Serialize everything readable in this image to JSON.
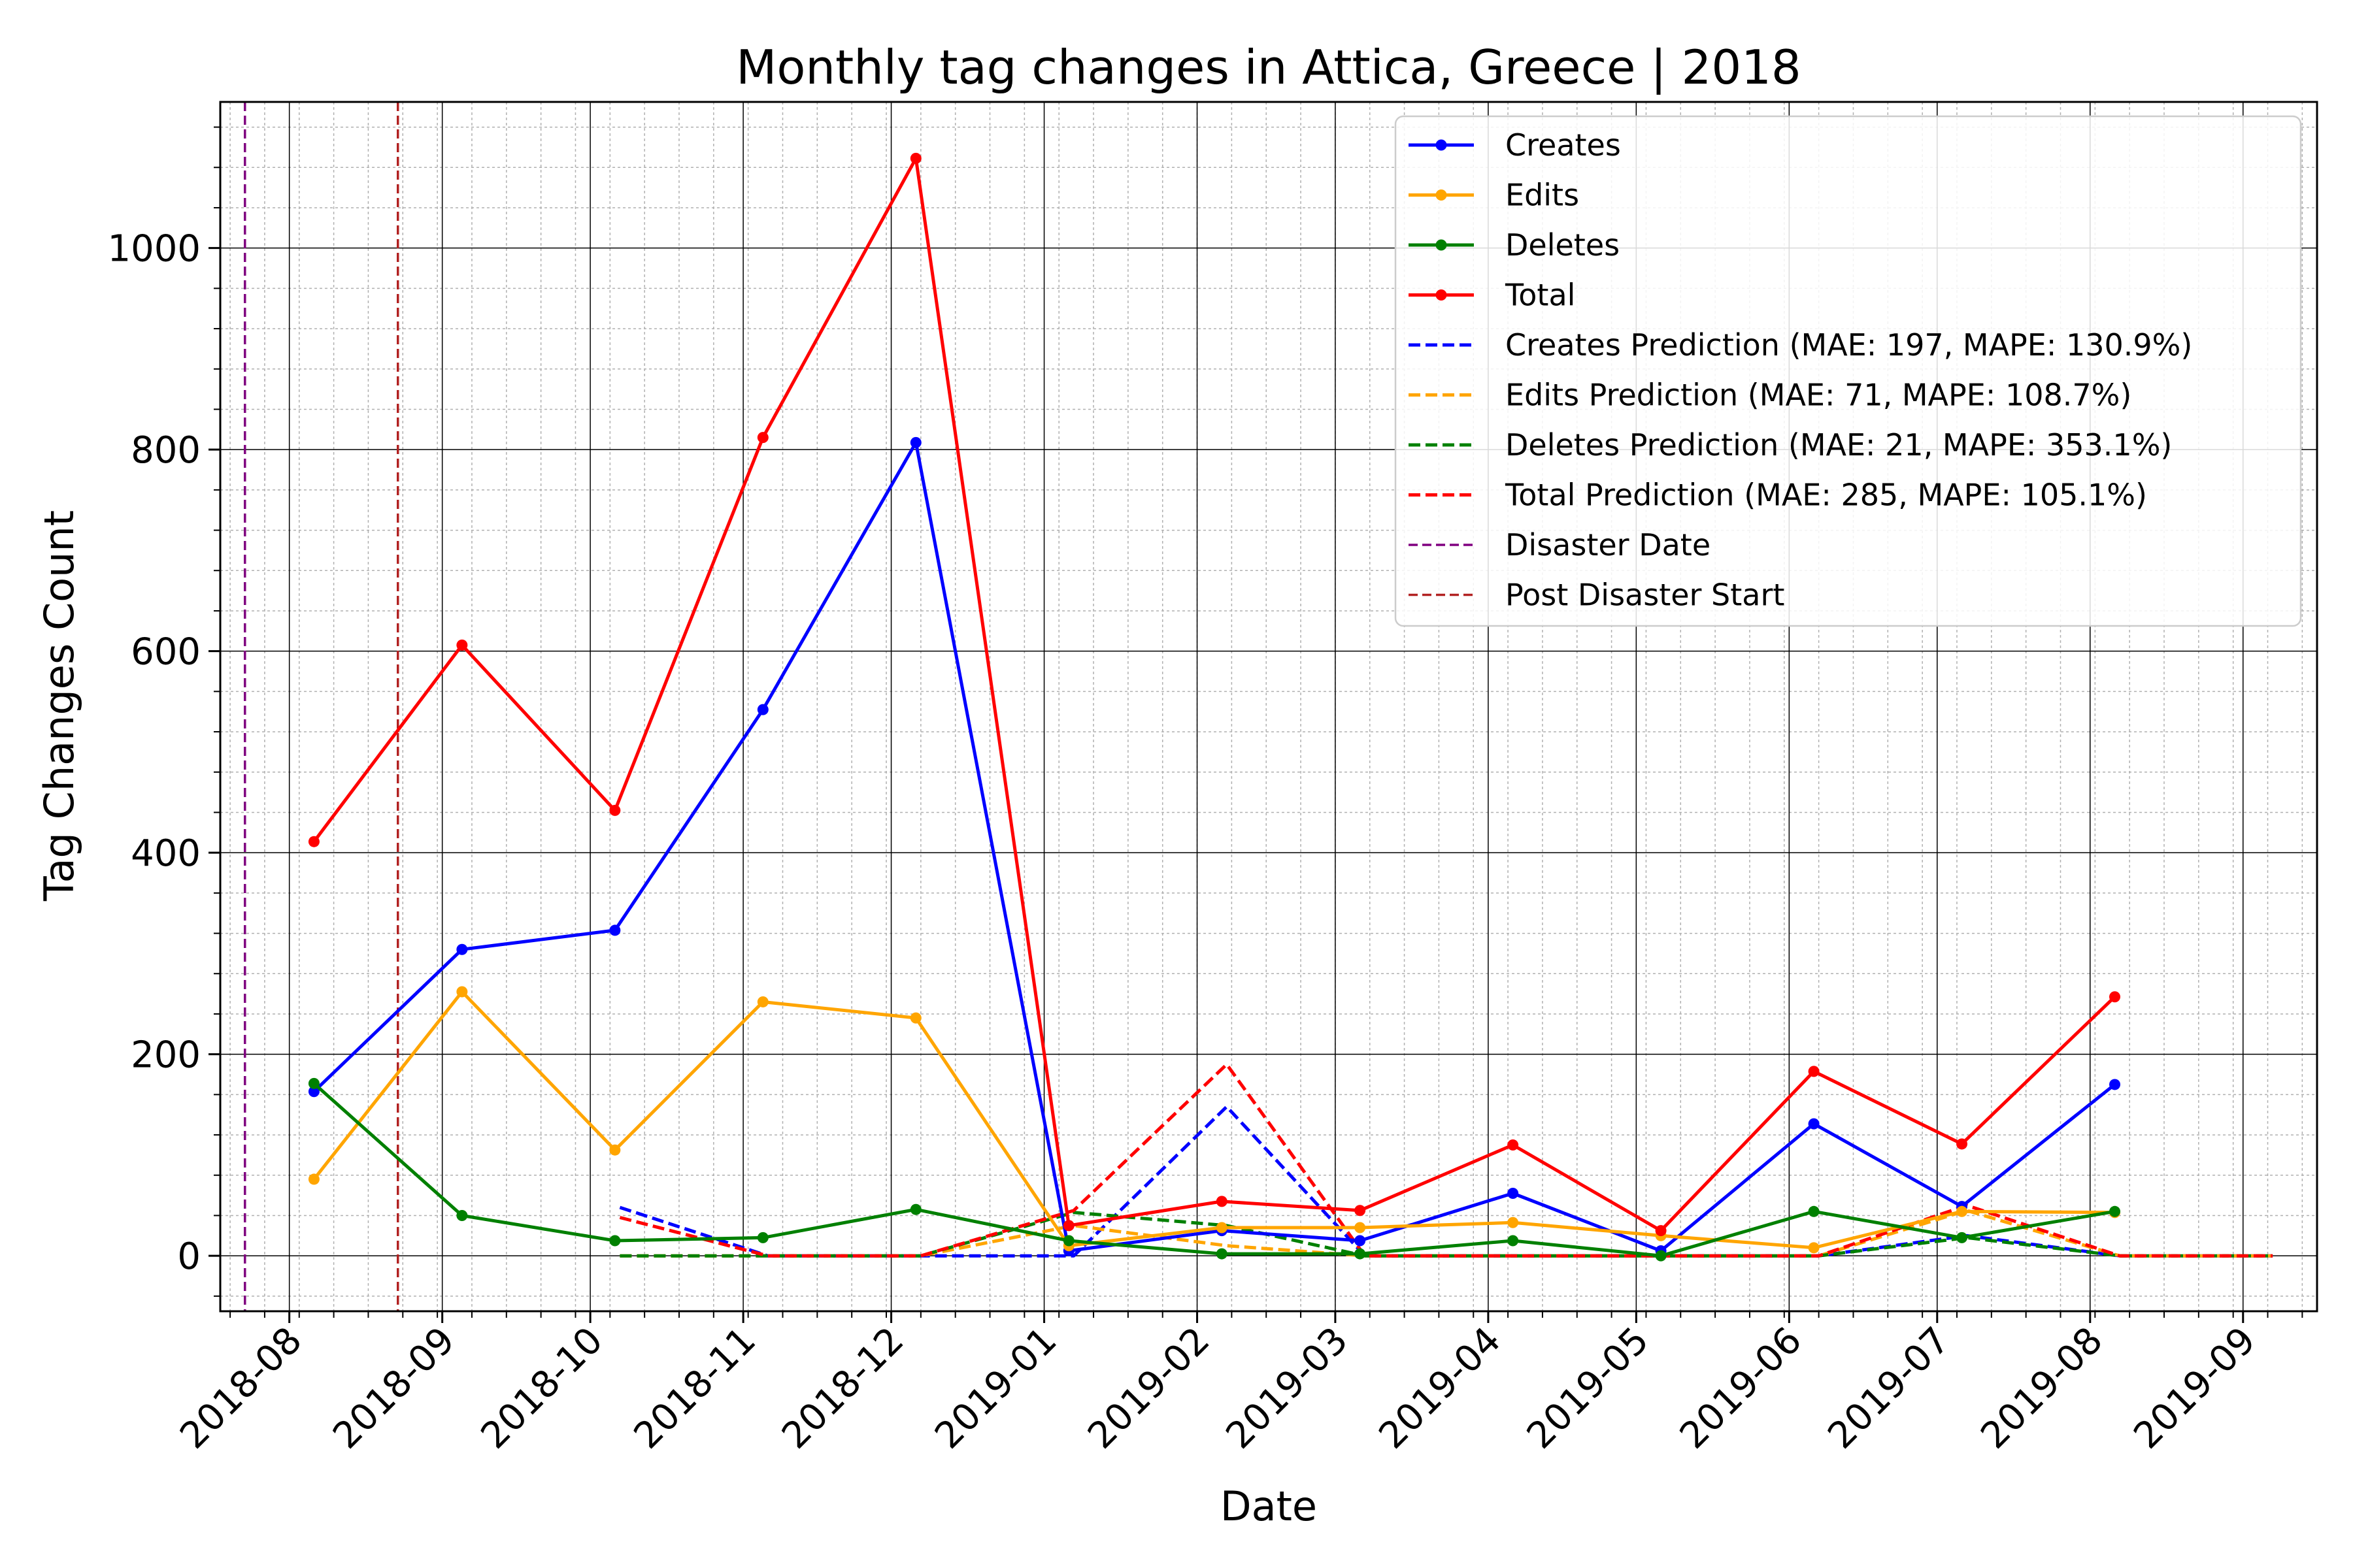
{
  "chart_data": {
    "type": "line",
    "title": "Monthly tag changes in Attica, Greece | 2018",
    "xlabel": "Date",
    "ylabel": "Tag Changes Count",
    "x_tick_labels": [
      "2018-08",
      "2018-09",
      "2018-10",
      "2018-11",
      "2018-12",
      "2019-01",
      "2019-02",
      "2019-03",
      "2019-04",
      "2019-05",
      "2019-06",
      "2019-07",
      "2019-08",
      "2019-09"
    ],
    "xlim": [
      "2018-07-18",
      "2019-09-16"
    ],
    "y_ticks": [
      0,
      200,
      400,
      600,
      800,
      1000
    ],
    "ylim": [
      -55,
      1145
    ],
    "grid": "major and minor",
    "legend_position": "top-right",
    "series": [
      {
        "name": "Creates",
        "color": "#0000ff",
        "style": "solid",
        "markers": true,
        "points": [
          [
            "2018-08-06",
            163
          ],
          [
            "2018-09-05",
            304
          ],
          [
            "2018-10-06",
            323
          ],
          [
            "2018-11-05",
            542
          ],
          [
            "2018-12-06",
            807
          ],
          [
            "2019-01-06",
            5
          ],
          [
            "2019-02-06",
            25
          ],
          [
            "2019-03-06",
            15
          ],
          [
            "2019-04-06",
            62
          ],
          [
            "2019-05-06",
            5
          ],
          [
            "2019-06-06",
            131
          ],
          [
            "2019-07-06",
            49
          ],
          [
            "2019-08-06",
            170
          ]
        ]
      },
      {
        "name": "Edits",
        "color": "#ffa500",
        "style": "solid",
        "markers": true,
        "points": [
          [
            "2018-08-06",
            76
          ],
          [
            "2018-09-05",
            262
          ],
          [
            "2018-10-06",
            105
          ],
          [
            "2018-11-05",
            252
          ],
          [
            "2018-12-06",
            236
          ],
          [
            "2019-01-06",
            10
          ],
          [
            "2019-02-06",
            28
          ],
          [
            "2019-03-06",
            28
          ],
          [
            "2019-04-06",
            33
          ],
          [
            "2019-05-06",
            20
          ],
          [
            "2019-06-06",
            8
          ],
          [
            "2019-07-06",
            44
          ],
          [
            "2019-08-06",
            43
          ]
        ]
      },
      {
        "name": "Deletes",
        "color": "#008000",
        "style": "solid",
        "markers": true,
        "points": [
          [
            "2018-08-06",
            171
          ],
          [
            "2018-09-05",
            40
          ],
          [
            "2018-10-06",
            15
          ],
          [
            "2018-11-05",
            18
          ],
          [
            "2018-12-06",
            46
          ],
          [
            "2019-01-06",
            15
          ],
          [
            "2019-02-06",
            2
          ],
          [
            "2019-03-06",
            2
          ],
          [
            "2019-04-06",
            15
          ],
          [
            "2019-05-06",
            0
          ],
          [
            "2019-06-06",
            44
          ],
          [
            "2019-07-06",
            18
          ],
          [
            "2019-08-06",
            44
          ]
        ]
      },
      {
        "name": "Total",
        "color": "#ff0000",
        "style": "solid",
        "markers": true,
        "points": [
          [
            "2018-08-06",
            411
          ],
          [
            "2018-09-05",
            606
          ],
          [
            "2018-10-06",
            442
          ],
          [
            "2018-11-05",
            812
          ],
          [
            "2018-12-06",
            1089
          ],
          [
            "2019-01-06",
            30
          ],
          [
            "2019-02-06",
            54
          ],
          [
            "2019-03-06",
            45
          ],
          [
            "2019-04-06",
            110
          ],
          [
            "2019-05-06",
            25
          ],
          [
            "2019-06-06",
            183
          ],
          [
            "2019-07-06",
            111
          ],
          [
            "2019-08-06",
            257
          ]
        ]
      },
      {
        "name": "Creates Prediction (MAE: 197, MAPE: 130.9%)",
        "color": "#0000ff",
        "style": "dashed",
        "markers": false,
        "points": [
          [
            "2018-10-07",
            48
          ],
          [
            "2018-11-06",
            0
          ],
          [
            "2018-12-07",
            0
          ],
          [
            "2019-01-07",
            0
          ],
          [
            "2019-02-07",
            148
          ],
          [
            "2019-03-07",
            0
          ],
          [
            "2019-04-07",
            0
          ],
          [
            "2019-05-07",
            0
          ],
          [
            "2019-06-07",
            0
          ],
          [
            "2019-07-07",
            20
          ],
          [
            "2019-08-07",
            0
          ],
          [
            "2019-09-07",
            0
          ]
        ]
      },
      {
        "name": "Edits Prediction (MAE: 71, MAPE: 108.7%)",
        "color": "#ffa500",
        "style": "dashed",
        "markers": false,
        "points": [
          [
            "2018-10-07",
            0
          ],
          [
            "2018-11-06",
            0
          ],
          [
            "2018-12-07",
            0
          ],
          [
            "2019-01-07",
            30
          ],
          [
            "2019-02-07",
            10
          ],
          [
            "2019-03-07",
            0
          ],
          [
            "2019-04-07",
            0
          ],
          [
            "2019-05-07",
            0
          ],
          [
            "2019-06-07",
            0
          ],
          [
            "2019-07-07",
            45
          ],
          [
            "2019-08-07",
            0
          ],
          [
            "2019-09-07",
            0
          ]
        ]
      },
      {
        "name": "Deletes Prediction (MAE: 21, MAPE: 353.1%)",
        "color": "#008000",
        "style": "dashed",
        "markers": false,
        "points": [
          [
            "2018-10-07",
            0
          ],
          [
            "2018-11-06",
            0
          ],
          [
            "2018-12-07",
            0
          ],
          [
            "2019-01-07",
            43
          ],
          [
            "2019-02-07",
            30
          ],
          [
            "2019-03-07",
            0
          ],
          [
            "2019-04-07",
            0
          ],
          [
            "2019-05-07",
            0
          ],
          [
            "2019-06-07",
            0
          ],
          [
            "2019-07-07",
            18
          ],
          [
            "2019-08-07",
            0
          ],
          [
            "2019-09-07",
            0
          ]
        ]
      },
      {
        "name": "Total Prediction (MAE: 285, MAPE: 105.1%)",
        "color": "#ff0000",
        "style": "dashed",
        "markers": false,
        "points": [
          [
            "2018-10-07",
            38
          ],
          [
            "2018-11-06",
            0
          ],
          [
            "2018-12-07",
            0
          ],
          [
            "2019-01-07",
            45
          ],
          [
            "2019-02-07",
            190
          ],
          [
            "2019-03-07",
            0
          ],
          [
            "2019-04-07",
            0
          ],
          [
            "2019-05-07",
            0
          ],
          [
            "2019-06-07",
            0
          ],
          [
            "2019-07-07",
            50
          ],
          [
            "2019-08-07",
            0
          ],
          [
            "2019-09-07",
            0
          ]
        ]
      }
    ],
    "vlines": [
      {
        "name": "Disaster Date",
        "date": "2018-07-23",
        "color": "#800080",
        "style": "dashed"
      },
      {
        "name": "Post Disaster Start",
        "date": "2018-08-23",
        "color": "#b22222",
        "style": "dashed"
      }
    ]
  }
}
